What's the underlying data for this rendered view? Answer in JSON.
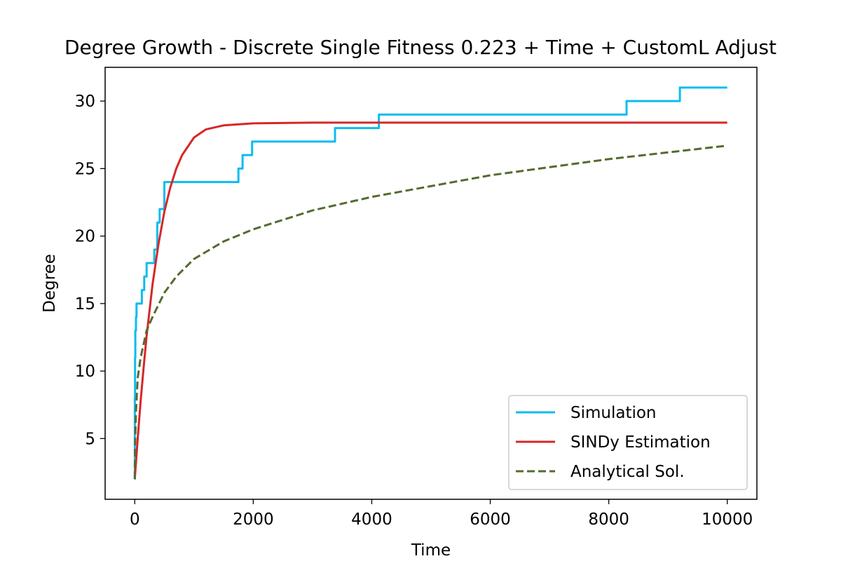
{
  "chart_data": {
    "type": "line",
    "title": "Degree Growth - Discrete Single Fitness 0.223 + Time + CustomL Adjust",
    "xlabel": "Time",
    "ylabel": "Degree",
    "xlim": [
      -500,
      10500
    ],
    "ylim": [
      0.5,
      32.5
    ],
    "xticks": [
      0,
      2000,
      4000,
      6000,
      8000,
      10000
    ],
    "yticks": [
      5,
      10,
      15,
      20,
      25,
      30
    ],
    "grid": false,
    "legend_position": "lower right",
    "series": [
      {
        "name": "Simulation",
        "color": "#0dbcee",
        "style": "step",
        "x": [
          0,
          2,
          5,
          10,
          20,
          30,
          50,
          120,
          160,
          200,
          250,
          330,
          380,
          420,
          500,
          1750,
          1820,
          1880,
          1980,
          3380,
          4120,
          8300,
          9200,
          10000
        ],
        "y": [
          2,
          8,
          11,
          13,
          14,
          15,
          15,
          16,
          17,
          18,
          18,
          19,
          21,
          22,
          24,
          25,
          26,
          26,
          27,
          28,
          29,
          30,
          31,
          31
        ]
      },
      {
        "name": "SINDy Estimation",
        "color": "#d62728",
        "style": "solid",
        "x": [
          0,
          50,
          100,
          150,
          200,
          300,
          400,
          500,
          600,
          700,
          800,
          1000,
          1200,
          1500,
          2000,
          3000,
          5000,
          10000
        ],
        "y": [
          2,
          5.0,
          7.8,
          10.3,
          12.6,
          16.4,
          19.4,
          21.8,
          23.6,
          25.0,
          26.0,
          27.3,
          27.9,
          28.2,
          28.35,
          28.4,
          28.4,
          28.4
        ]
      },
      {
        "name": "Analytical Sol.",
        "color": "#556b2f",
        "style": "dashed",
        "x": [
          0,
          5,
          20,
          50,
          100,
          200,
          300,
          500,
          700,
          1000,
          1500,
          2000,
          3000,
          4000,
          5000,
          6000,
          7000,
          8000,
          9000,
          10000
        ],
        "y": [
          2,
          4.5,
          7,
          9.5,
          11,
          13,
          14,
          15.8,
          17,
          18.3,
          19.6,
          20.5,
          21.9,
          22.9,
          23.7,
          24.5,
          25.1,
          25.7,
          26.2,
          26.7
        ]
      }
    ]
  }
}
